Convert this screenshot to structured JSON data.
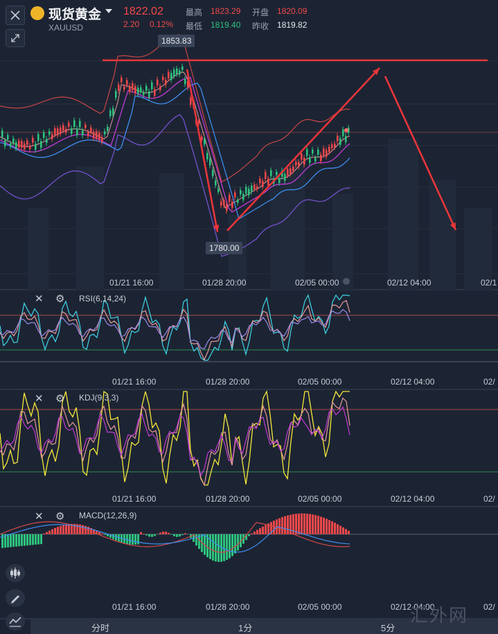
{
  "header": {
    "symbol_name": "现货黄金",
    "symbol_code": "XAUUSD",
    "last_price": "1822.02",
    "change": "2.20",
    "change_pct": "0.12%",
    "high_label": "最高",
    "high_value": "1823.29",
    "open_label": "开盘",
    "open_value": "1820.09",
    "low_label": "最低",
    "low_value": "1819.40",
    "prev_close_label": "昨收",
    "prev_close_value": "1819.82"
  },
  "main_chart": {
    "high_tip": "1853.83",
    "low_tip": "1780.00",
    "x_labels": [
      "01/21 16:00",
      "01/28 20:00",
      "02/05 00:00",
      "02/12 04:00",
      "02/1"
    ]
  },
  "indicators": [
    {
      "id": "rsi",
      "label": "RSI(6,14,24)",
      "x_labels": [
        "01/21 16:00",
        "01/28 20:00",
        "02/05 00:00",
        "02/12 04:00",
        "02/"
      ]
    },
    {
      "id": "kdj",
      "label": "KDJ(9,3,3)",
      "x_labels": [
        "01/21 16:00",
        "01/28 20:00",
        "02/05 00:00",
        "02/12 04:00",
        "02/"
      ]
    },
    {
      "id": "macd",
      "label": "MACD(12,26,9)",
      "x_labels": [
        "01/21 16:00",
        "01/28 20:00",
        "02/05 00:00",
        "02/12 04:00",
        "02/"
      ]
    }
  ],
  "tabs": [
    "分时",
    "1分",
    "5分"
  ],
  "watermark": "汇外网",
  "colors": {
    "up": "#f2484a",
    "down": "#2ec27e",
    "bg": "#1c2433",
    "ma_blue": "#3f8ef0",
    "ma_purple": "#c13bd6",
    "kdj_yellow": "#f5e83a",
    "rsi_cyan": "#3fd6e8",
    "arrow": "#e8353a"
  },
  "icons": [
    "close-icon",
    "shrink-icon",
    "gear-icon",
    "candle-icon",
    "pencil-icon",
    "line-icon"
  ]
}
